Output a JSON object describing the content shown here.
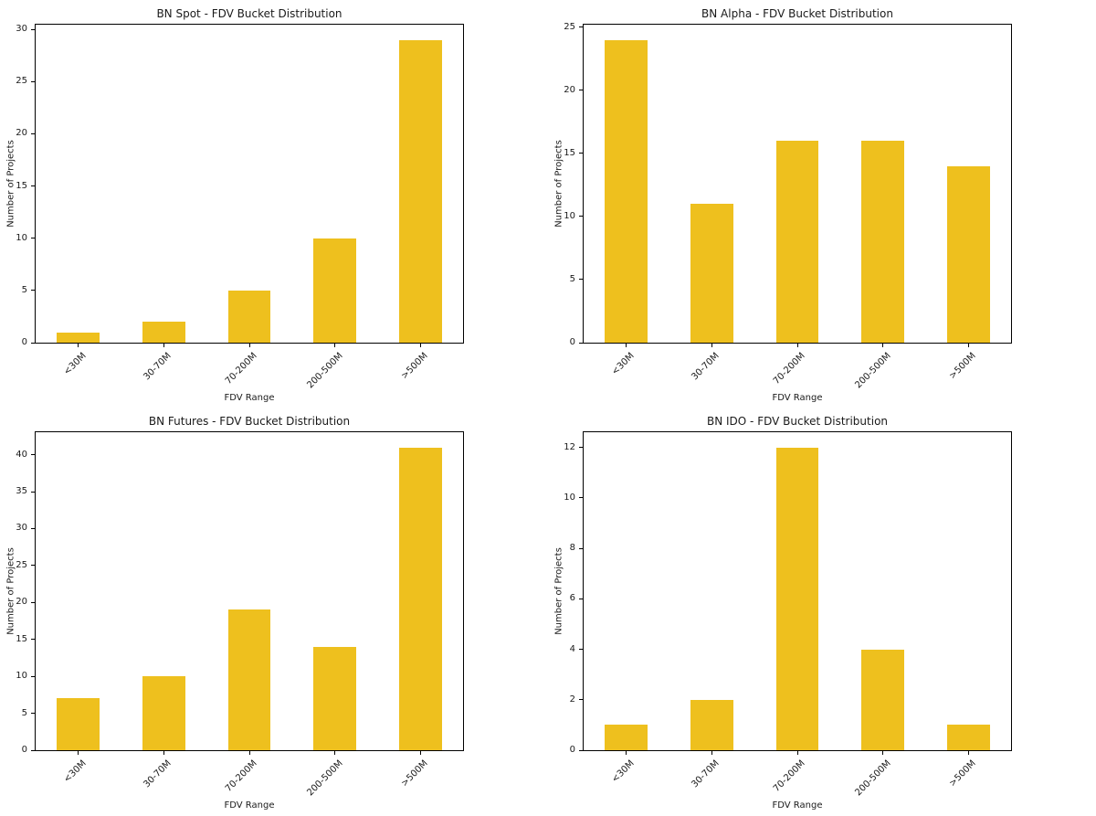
{
  "figure": {
    "background": "#ffffff"
  },
  "colors": {
    "bar": "#EEC01E",
    "axis": "#000000",
    "text": "#1a1a1a"
  },
  "chart_data": [
    {
      "type": "bar",
      "title": "BN Spot - FDV Bucket Distribution",
      "categories": [
        "<30M",
        "30-70M",
        "70-200M",
        "200-500M",
        ">500M"
      ],
      "values": [
        1,
        2,
        5,
        10,
        29
      ],
      "xlabel": "FDV Range",
      "ylabel": "Number of Projects",
      "ylim": [
        0,
        30.45
      ],
      "yticks": [
        0,
        5,
        10,
        15,
        20,
        25,
        30
      ],
      "grid": false,
      "legend": "none",
      "bar_color": "#EEC01E"
    },
    {
      "type": "bar",
      "title": "BN Alpha - FDV Bucket Distribution",
      "categories": [
        "<30M",
        "30-70M",
        "70-200M",
        "200-500M",
        ">500M"
      ],
      "values": [
        24,
        11,
        16,
        16,
        14
      ],
      "xlabel": "FDV Range",
      "ylabel": "Number of Projects",
      "ylim": [
        0,
        25.2
      ],
      "yticks": [
        0,
        5,
        10,
        15,
        20,
        25
      ],
      "grid": false,
      "legend": "none",
      "bar_color": "#EEC01E"
    },
    {
      "type": "bar",
      "title": "BN Futures - FDV Bucket Distribution",
      "categories": [
        "<30M",
        "30-70M",
        "70-200M",
        "200-500M",
        ">500M"
      ],
      "values": [
        7,
        10,
        19,
        14,
        41
      ],
      "xlabel": "FDV Range",
      "ylabel": "Number of Projects",
      "ylim": [
        0,
        43.05
      ],
      "yticks": [
        0,
        5,
        10,
        15,
        20,
        25,
        30,
        35,
        40
      ],
      "grid": false,
      "legend": "none",
      "bar_color": "#EEC01E"
    },
    {
      "type": "bar",
      "title": "BN IDO - FDV Bucket Distribution",
      "categories": [
        "<30M",
        "30-70M",
        "70-200M",
        "200-500M",
        ">500M"
      ],
      "values": [
        1,
        2,
        12,
        4,
        1
      ],
      "xlabel": "FDV Range",
      "ylabel": "Number of Projects",
      "ylim": [
        0,
        12.6
      ],
      "yticks": [
        0,
        2,
        4,
        6,
        8,
        10,
        12
      ],
      "grid": false,
      "legend": "none",
      "bar_color": "#EEC01E"
    }
  ]
}
